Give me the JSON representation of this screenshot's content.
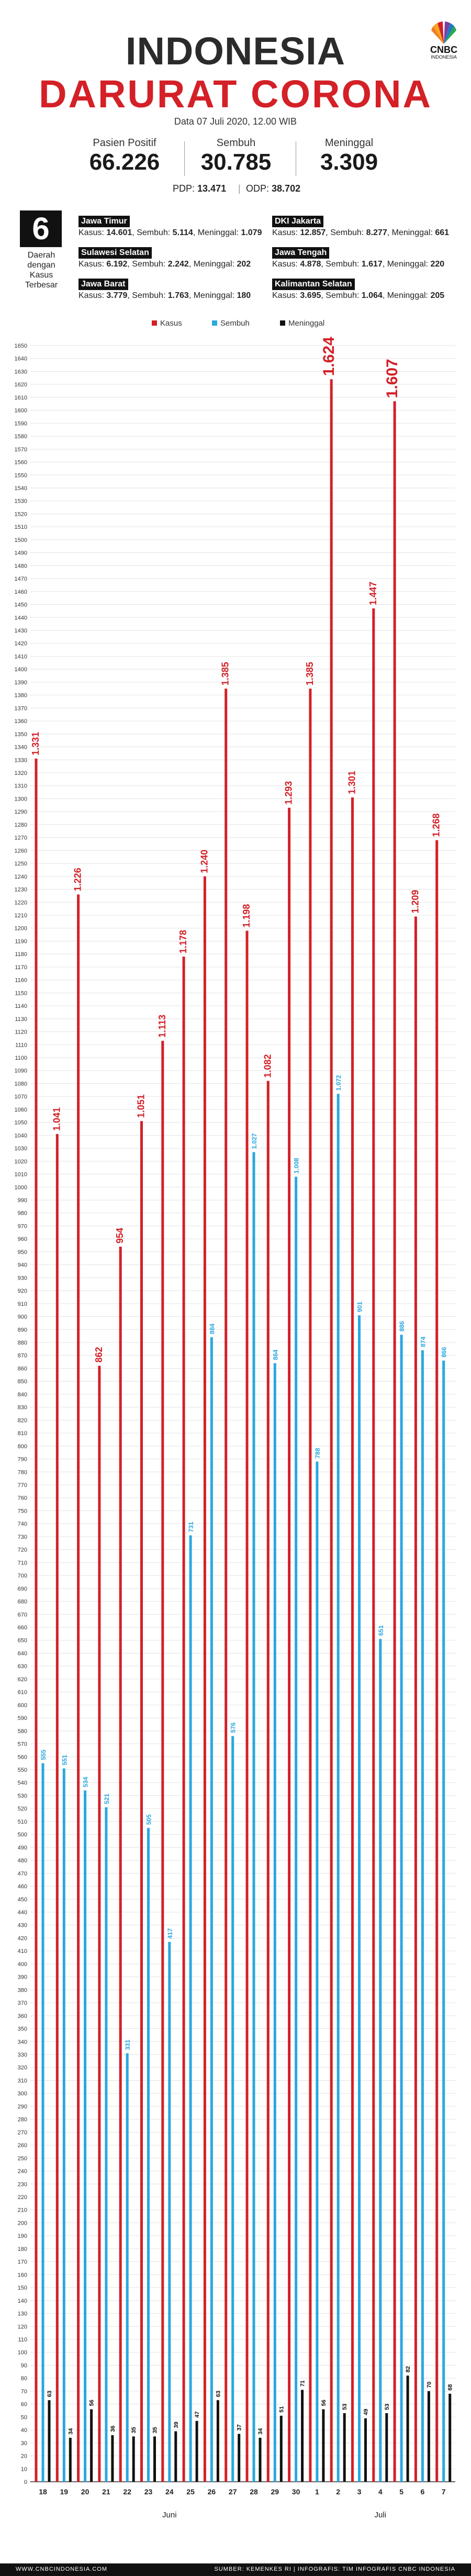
{
  "header": {
    "title_line1": "INDONESIA",
    "title_line2": "DARURAT CORONA",
    "date": "Data 07 Juli 2020, 12.00 WIB",
    "logo": "CNBC",
    "logo_sub": "INDONESIA"
  },
  "stats": {
    "positive_label": "Pasien Positif",
    "positive_value": "66.226",
    "recovered_label": "Sembuh",
    "recovered_value": "30.785",
    "deaths_label": "Meninggal",
    "deaths_value": "3.309",
    "pdp_label": "PDP:",
    "pdp_value": "13.471",
    "odp_label": "ODP:",
    "odp_value": "38.702"
  },
  "regions_block": {
    "count": "6",
    "caption": [
      "Daerah",
      "dengan",
      "Kasus",
      "Terbesar"
    ],
    "items": [
      {
        "name": "Jawa Timur",
        "kasus": "14.601",
        "sembuh": "5.114",
        "meninggal": "1.079"
      },
      {
        "name": "DKI Jakarta",
        "kasus": "12.857",
        "sembuh": "8.277",
        "meninggal": "661"
      },
      {
        "name": "Sulawesi Selatan",
        "kasus": "6.192",
        "sembuh": "2.242",
        "meninggal": "202"
      },
      {
        "name": "Jawa Tengah",
        "kasus": "4.878",
        "sembuh": "1.617",
        "meninggal": "220"
      },
      {
        "name": "Jawa Barat",
        "kasus": "3.779",
        "sembuh": "1.763",
        "meninggal": "180"
      },
      {
        "name": "Kalimantan Selatan",
        "kasus": "3.695",
        "sembuh": "1.064",
        "meninggal": "205"
      }
    ],
    "kasus_label": "Kasus:",
    "sembuh_label": "Sembuh:",
    "meninggal_label": "Meninggal:"
  },
  "colors": {
    "kasus": "#d42027",
    "sembuh": "#29a8e0",
    "meninggal": "#111111",
    "title_red": "#d42027"
  },
  "chart_data": {
    "type": "bar",
    "categories": [
      "18",
      "19",
      "20",
      "21",
      "22",
      "23",
      "24",
      "25",
      "26",
      "27",
      "28",
      "29",
      "30",
      "1",
      "2",
      "3",
      "4",
      "5",
      "6",
      "7"
    ],
    "month_labels": [
      {
        "label": "Juni",
        "from": 0,
        "to": 12
      },
      {
        "label": "Juli",
        "from": 13,
        "to": 19
      }
    ],
    "series": [
      {
        "name": "Kasus",
        "values": [
          1331,
          1041,
          1226,
          862,
          954,
          1051,
          1113,
          1178,
          1240,
          1385,
          1198,
          1082,
          1293,
          1385,
          1624,
          1301,
          1447,
          1607,
          1209,
          1268
        ]
      },
      {
        "name": "Sembuh",
        "values": [
          555,
          551,
          534,
          521,
          331,
          505,
          417,
          731,
          884,
          576,
          1027,
          864,
          1008,
          788,
          1072,
          901,
          651,
          886,
          874,
          866
        ]
      },
      {
        "name": "Meninggal",
        "values": [
          63,
          34,
          56,
          36,
          35,
          35,
          39,
          47,
          63,
          37,
          34,
          51,
          71,
          56,
          53,
          49,
          53,
          82,
          70,
          68
        ]
      }
    ],
    "legend": [
      "Kasus",
      "Sembuh",
      "Meninggal"
    ],
    "legend_position": "top",
    "ylim": [
      0,
      1650
    ],
    "ytick_step": 10,
    "grid": true
  },
  "footer": {
    "left": "WWW.CNBCINDONESIA.COM",
    "right": "SUMBER: KEMENKES RI  |  INFOGRAFIS: TIM INFOGRAFIS CNBC INDONESIA"
  }
}
